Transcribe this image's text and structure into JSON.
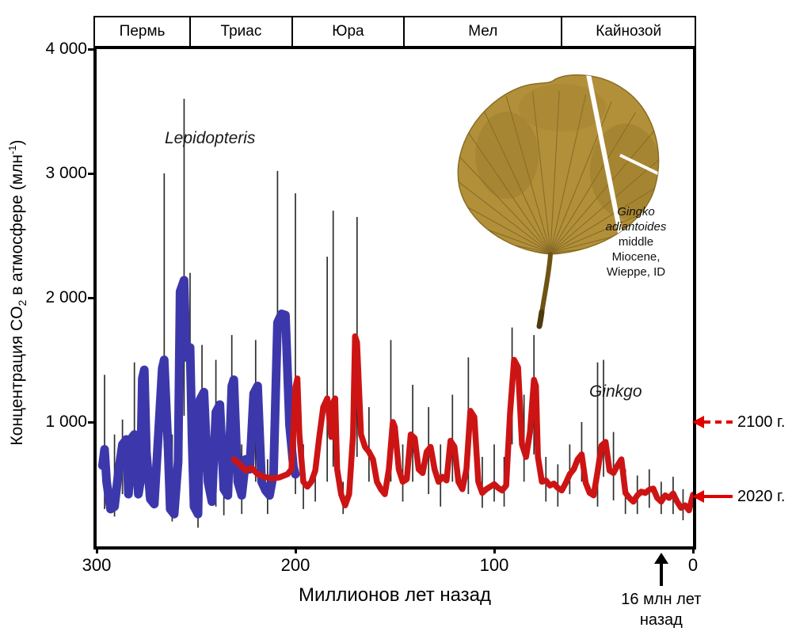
{
  "chart_data": {
    "type": "line",
    "title": "",
    "xlabel": "Миллионов лет назад",
    "ylabel_parts": {
      "pre": "Концентрация CO",
      "sub": "2",
      "mid": " в атмосфере (млн",
      "sup": "-1",
      "post": ")"
    },
    "x_axis": {
      "min": 300,
      "max": 0,
      "ticks": [
        {
          "value": 300,
          "label": "300"
        },
        {
          "value": 200,
          "label": "200"
        },
        {
          "value": 100,
          "label": "100"
        },
        {
          "value": 0,
          "label": "0"
        }
      ]
    },
    "y_axis": {
      "min": 0,
      "max": 4000,
      "ticks": [
        {
          "value": 4000,
          "label": "4 000"
        },
        {
          "value": 3000,
          "label": "3 000"
        },
        {
          "value": 2000,
          "label": "2 000"
        },
        {
          "value": 1000,
          "label": "1 000"
        }
      ]
    },
    "periods": [
      {
        "label": "Пермь",
        "from": 300,
        "to": 252
      },
      {
        "label": "Триас",
        "from": 252,
        "to": 201
      },
      {
        "label": "Юра",
        "from": 201,
        "to": 145
      },
      {
        "label": "Мел",
        "from": 145,
        "to": 66
      },
      {
        "label": "Кайнозой",
        "from": 66,
        "to": 0
      }
    ],
    "series": [
      {
        "name": "Lepidopteris",
        "color": "#3c38ab",
        "width": 11,
        "points": [
          [
            297,
            650
          ],
          [
            296,
            780
          ],
          [
            295,
            520
          ],
          [
            293,
            300
          ],
          [
            291,
            320
          ],
          [
            289,
            600
          ],
          [
            287,
            820
          ],
          [
            285,
            860
          ],
          [
            284,
            420
          ],
          [
            282,
            880
          ],
          [
            281,
            900
          ],
          [
            279,
            420
          ],
          [
            278,
            520
          ],
          [
            277,
            1350
          ],
          [
            276,
            1420
          ],
          [
            275,
            760
          ],
          [
            273,
            380
          ],
          [
            271,
            340
          ],
          [
            269,
            880
          ],
          [
            267,
            1430
          ],
          [
            266,
            1500
          ],
          [
            264,
            760
          ],
          [
            263,
            300
          ],
          [
            261,
            260
          ],
          [
            259,
            680
          ],
          [
            258,
            2050
          ],
          [
            256,
            2140
          ],
          [
            255,
            1520
          ],
          [
            253,
            1600
          ],
          [
            252,
            860
          ],
          [
            251,
            320
          ],
          [
            249,
            260
          ],
          [
            248,
            1180
          ],
          [
            246,
            1240
          ],
          [
            244,
            520
          ],
          [
            242,
            360
          ],
          [
            240,
            1080
          ],
          [
            238,
            1140
          ],
          [
            236,
            460
          ],
          [
            234,
            410
          ],
          [
            232,
            1290
          ],
          [
            231,
            1340
          ],
          [
            229,
            520
          ],
          [
            227,
            410
          ],
          [
            225,
            700
          ],
          [
            223,
            620
          ],
          [
            221,
            1230
          ],
          [
            219,
            1290
          ],
          [
            217,
            520
          ],
          [
            215,
            450
          ],
          [
            213,
            410
          ],
          [
            211,
            590
          ],
          [
            209,
            1800
          ],
          [
            207,
            1870
          ],
          [
            205,
            1860
          ],
          [
            203,
            980
          ],
          [
            201,
            640
          ],
          [
            200,
            580
          ]
        ]
      },
      {
        "name": "Ginkgo",
        "color": "#cd1414",
        "width": 7.5,
        "points": [
          [
            231,
            700
          ],
          [
            228,
            660
          ],
          [
            225,
            610
          ],
          [
            222,
            630
          ],
          [
            219,
            580
          ],
          [
            216,
            560
          ],
          [
            212,
            545
          ],
          [
            208,
            555
          ],
          [
            204,
            580
          ],
          [
            202,
            620
          ],
          [
            200,
            1280
          ],
          [
            199,
            1350
          ],
          [
            198,
            900
          ],
          [
            196,
            520
          ],
          [
            194,
            480
          ],
          [
            192,
            520
          ],
          [
            190,
            610
          ],
          [
            188,
            880
          ],
          [
            186,
            1120
          ],
          [
            184,
            1190
          ],
          [
            182,
            880
          ],
          [
            181,
            1160
          ],
          [
            180,
            1190
          ],
          [
            179,
            620
          ],
          [
            177,
            420
          ],
          [
            175,
            330
          ],
          [
            173,
            420
          ],
          [
            171,
            900
          ],
          [
            170,
            1690
          ],
          [
            169,
            1640
          ],
          [
            167,
            900
          ],
          [
            165,
            800
          ],
          [
            163,
            760
          ],
          [
            161,
            700
          ],
          [
            159,
            520
          ],
          [
            157,
            460
          ],
          [
            155,
            420
          ],
          [
            153,
            620
          ],
          [
            151,
            1000
          ],
          [
            150,
            960
          ],
          [
            148,
            620
          ],
          [
            146,
            520
          ],
          [
            144,
            540
          ],
          [
            142,
            900
          ],
          [
            140,
            870
          ],
          [
            138,
            620
          ],
          [
            136,
            590
          ],
          [
            134,
            760
          ],
          [
            132,
            800
          ],
          [
            130,
            620
          ],
          [
            128,
            520
          ],
          [
            126,
            560
          ],
          [
            124,
            530
          ],
          [
            122,
            850
          ],
          [
            120,
            800
          ],
          [
            118,
            520
          ],
          [
            116,
            460
          ],
          [
            114,
            620
          ],
          [
            112,
            1090
          ],
          [
            110,
            1040
          ],
          [
            108,
            520
          ],
          [
            106,
            430
          ],
          [
            104,
            460
          ],
          [
            102,
            480
          ],
          [
            100,
            500
          ],
          [
            98,
            470
          ],
          [
            96,
            450
          ],
          [
            94,
            490
          ],
          [
            92,
            1080
          ],
          [
            90,
            1500
          ],
          [
            88,
            1440
          ],
          [
            86,
            820
          ],
          [
            84,
            720
          ],
          [
            82,
            920
          ],
          [
            80,
            1340
          ],
          [
            79,
            1290
          ],
          [
            78,
            720
          ],
          [
            76,
            520
          ],
          [
            74,
            530
          ],
          [
            72,
            490
          ],
          [
            70,
            505
          ],
          [
            68,
            470
          ],
          [
            66,
            450
          ],
          [
            64,
            510
          ],
          [
            62,
            580
          ],
          [
            60,
            620
          ],
          [
            58,
            700
          ],
          [
            56,
            740
          ],
          [
            54,
            510
          ],
          [
            52,
            430
          ],
          [
            50,
            410
          ],
          [
            48,
            600
          ],
          [
            46,
            810
          ],
          [
            44,
            840
          ],
          [
            42,
            610
          ],
          [
            40,
            590
          ],
          [
            38,
            650
          ],
          [
            36,
            700
          ],
          [
            34,
            430
          ],
          [
            32,
            390
          ],
          [
            30,
            360
          ],
          [
            28,
            410
          ],
          [
            26,
            440
          ],
          [
            24,
            430
          ],
          [
            22,
            455
          ],
          [
            20,
            465
          ],
          [
            18,
            390
          ],
          [
            16,
            360
          ],
          [
            14,
            410
          ],
          [
            12,
            390
          ],
          [
            10,
            425
          ],
          [
            8,
            360
          ],
          [
            6,
            310
          ],
          [
            4,
            330
          ],
          [
            2,
            290
          ],
          [
            0,
            415
          ]
        ]
      }
    ],
    "error_bars": [
      [
        296,
        300,
        1380
      ],
      [
        291,
        240,
        900
      ],
      [
        287,
        420,
        1020
      ],
      [
        281,
        500,
        1480
      ],
      [
        275,
        400,
        1200
      ],
      [
        266,
        800,
        3000
      ],
      [
        262,
        200,
        900
      ],
      [
        256,
        1050,
        3600
      ],
      [
        253,
        900,
        2200
      ],
      [
        249,
        150,
        700
      ],
      [
        247,
        620,
        1620
      ],
      [
        240,
        320,
        1500
      ],
      [
        236,
        250,
        750
      ],
      [
        232,
        720,
        1700
      ],
      [
        227,
        260,
        820
      ],
      [
        220,
        520,
        1660
      ],
      [
        214,
        260,
        700
      ],
      [
        209,
        950,
        3020
      ],
      [
        200,
        420,
        2840
      ],
      [
        196,
        300,
        820
      ],
      [
        190,
        360,
        720
      ],
      [
        184,
        520,
        2330
      ],
      [
        181,
        640,
        2700
      ],
      [
        176,
        260,
        520
      ],
      [
        169,
        720,
        2650
      ],
      [
        163,
        520,
        1120
      ],
      [
        152,
        520,
        1660
      ],
      [
        146,
        360,
        820
      ],
      [
        141,
        520,
        1300
      ],
      [
        133,
        420,
        1120
      ],
      [
        127,
        320,
        820
      ],
      [
        121,
        520,
        1220
      ],
      [
        113,
        420,
        1520
      ],
      [
        106,
        310,
        720
      ],
      [
        100,
        360,
        820
      ],
      [
        95,
        320,
        720
      ],
      [
        91,
        820,
        1760
      ],
      [
        85,
        520,
        1220
      ],
      [
        80,
        740,
        1700
      ],
      [
        74,
        360,
        720
      ],
      [
        68,
        320,
        660
      ],
      [
        62,
        420,
        820
      ],
      [
        56,
        520,
        1000
      ],
      [
        48,
        320,
        1480
      ],
      [
        45,
        560,
        1500
      ],
      [
        40,
        370,
        920
      ],
      [
        34,
        260,
        620
      ],
      [
        28,
        260,
        570
      ],
      [
        22,
        310,
        620
      ],
      [
        16,
        260,
        520
      ],
      [
        10,
        260,
        560
      ],
      [
        5,
        210,
        460
      ]
    ],
    "series_labels": {
      "blue": "Lepidopteris",
      "red": "Ginkgo"
    }
  },
  "annotations": {
    "right": [
      {
        "label": "2100 г.",
        "value": 1000,
        "line": "dashed"
      },
      {
        "label": "2020 г.",
        "value": 400,
        "line": "solid"
      }
    ],
    "bottom": {
      "lines": [
        "16 млн лет",
        "назад"
      ],
      "ma": 16
    }
  },
  "inset": {
    "caption": [
      "Gingko",
      "adiantoides",
      "middle",
      "Miocene,",
      "Wieppe, ID"
    ]
  }
}
